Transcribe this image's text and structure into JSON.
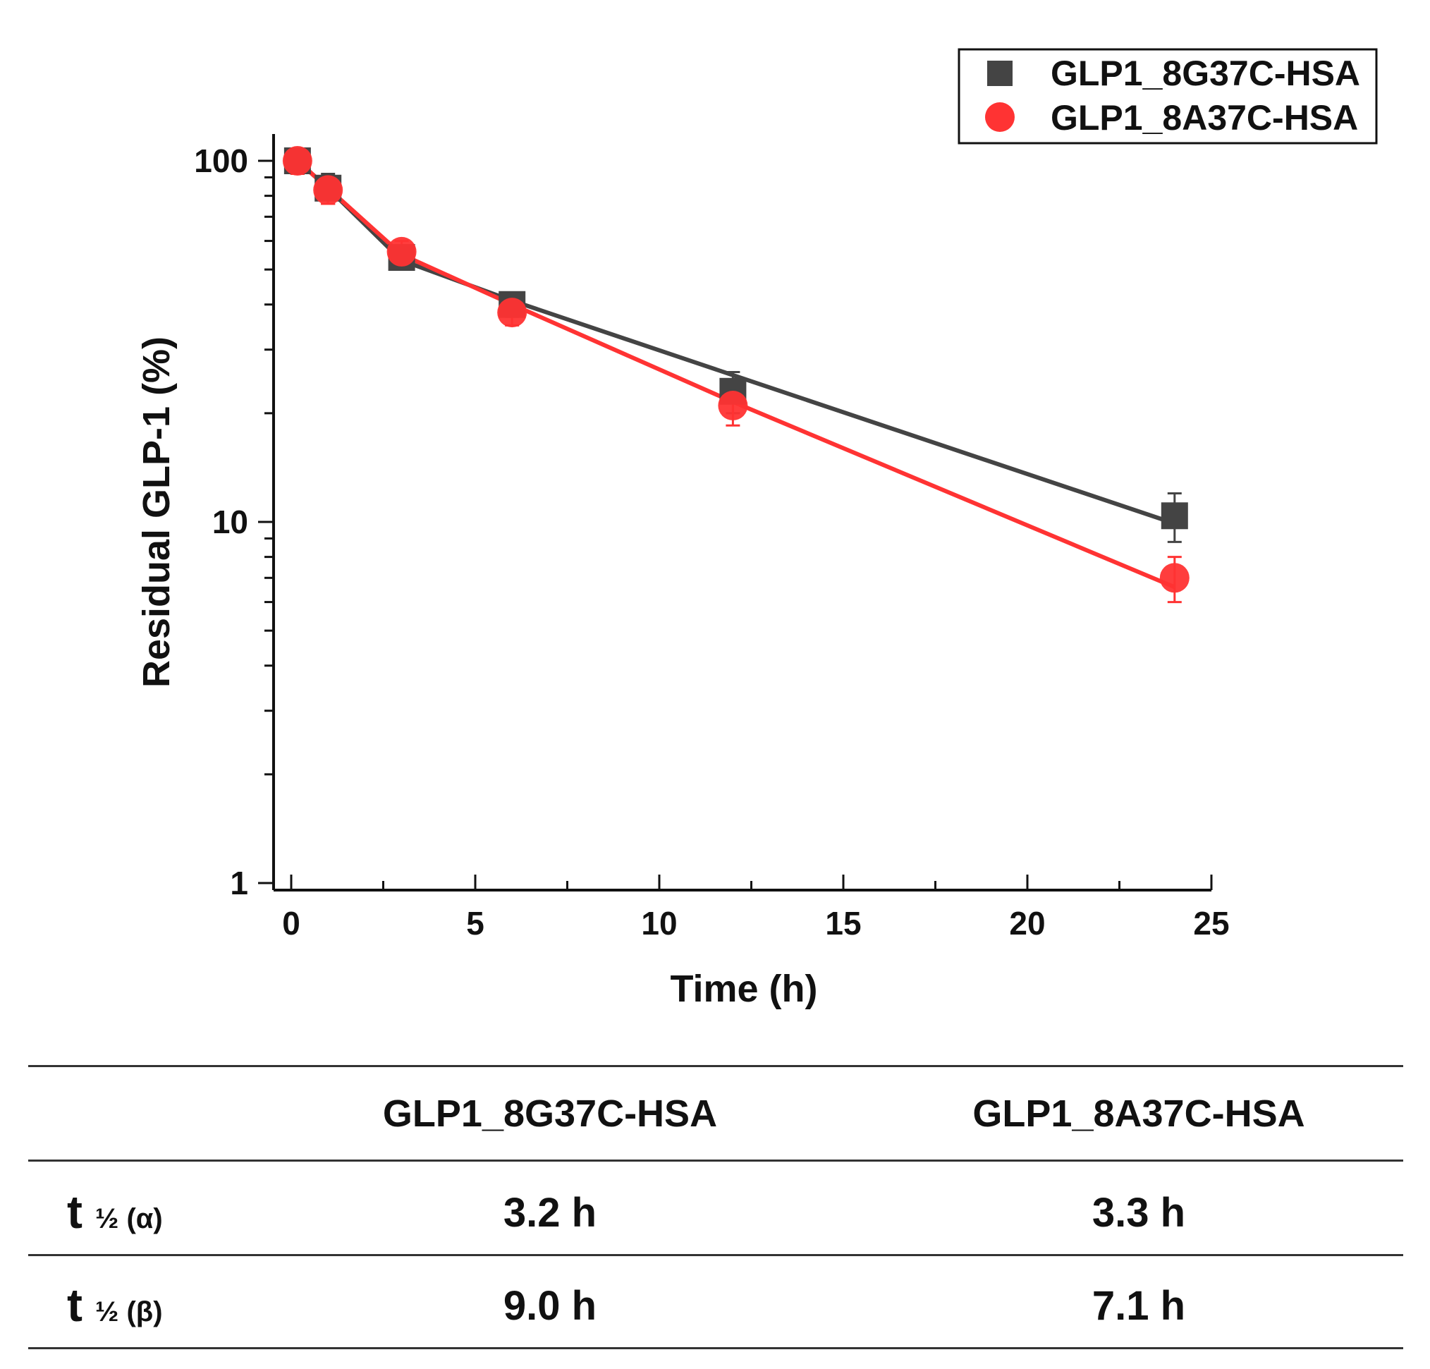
{
  "chart_data": {
    "type": "line",
    "xlabel": "Time (h)",
    "ylabel": "Residual GLP-1 (%)",
    "xlim": [
      0,
      25
    ],
    "ylim": [
      1,
      100
    ],
    "yscale": "log",
    "x_ticks": [
      0,
      5,
      10,
      15,
      20,
      25
    ],
    "y_ticks": [
      1,
      10,
      100
    ],
    "legend_position": "top-right",
    "series": [
      {
        "name": "GLP1_8G37C-HSA",
        "marker": "square",
        "color": "#444444",
        "points": [
          {
            "x": 0.17,
            "y": 100,
            "err": 8
          },
          {
            "x": 1,
            "y": 84,
            "err": 8
          },
          {
            "x": 3,
            "y": 54,
            "err": 4
          },
          {
            "x": 6,
            "y": 40,
            "err": 3
          },
          {
            "x": 12,
            "y": 23,
            "err": 3
          },
          {
            "x": 24,
            "y": 10.4,
            "err": 1.6
          }
        ],
        "fit": [
          {
            "x": 0.17,
            "y": 100
          },
          {
            "x": 1,
            "y": 84
          },
          {
            "x": 3,
            "y": 53
          },
          {
            "x": 6,
            "y": 41
          },
          {
            "x": 12,
            "y": 25.5
          },
          {
            "x": 24,
            "y": 9.9
          }
        ]
      },
      {
        "name": "GLP1_8A37C-HSA",
        "marker": "circle",
        "color": "#ff3333",
        "points": [
          {
            "x": 0.17,
            "y": 100,
            "err": 8
          },
          {
            "x": 1,
            "y": 83,
            "err": 7
          },
          {
            "x": 3,
            "y": 56,
            "err": 4
          },
          {
            "x": 6,
            "y": 38,
            "err": 3
          },
          {
            "x": 12,
            "y": 21,
            "err": 2.5
          },
          {
            "x": 24,
            "y": 7.0,
            "err": 1.0
          }
        ],
        "fit": [
          {
            "x": 0.17,
            "y": 100
          },
          {
            "x": 1,
            "y": 84
          },
          {
            "x": 3,
            "y": 55
          },
          {
            "x": 6,
            "y": 40
          },
          {
            "x": 12,
            "y": 21.5
          },
          {
            "x": 24,
            "y": 6.6
          }
        ]
      }
    ]
  },
  "table": {
    "columns": [
      "GLP1_8G37C-HSA",
      "GLP1_8A37C-HSA"
    ],
    "rows": [
      {
        "label_main": "t",
        "label_sub": "½ (α)",
        "values": [
          "3.2 h",
          "3.3 h"
        ]
      },
      {
        "label_main": "t",
        "label_sub": "½ (β)",
        "values": [
          "9.0 h",
          "7.1 h"
        ]
      }
    ]
  }
}
